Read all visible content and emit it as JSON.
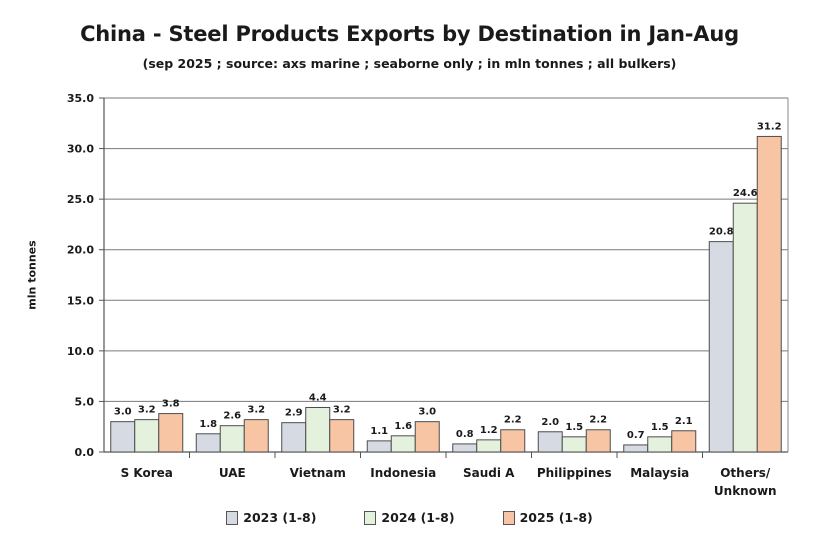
{
  "chart_data": {
    "type": "bar",
    "title": "China - Steel Products Exports by Destination in Jan-Aug",
    "subtitle": "(sep 2025 ; source: axs marine ; seaborne only ; in mln tonnes ; all bulkers)",
    "xlabel": "",
    "ylabel": "mln tonnes",
    "ylim": [
      0,
      35
    ],
    "yticks": [
      "0.0",
      "5.0",
      "10.0",
      "15.0",
      "20.0",
      "25.0",
      "30.0",
      "35.0"
    ],
    "grid": true,
    "legend_position": "bottom",
    "categories": [
      "S Korea",
      "UAE",
      "Vietnam",
      "Indonesia",
      "Saudi A",
      "Philippines",
      "Malaysia",
      "Others/ Unknown"
    ],
    "series": [
      {
        "name": "2023 (1-8)",
        "color": "#d5dae3",
        "values": [
          3.0,
          1.8,
          2.9,
          1.1,
          0.8,
          2.0,
          0.7,
          20.8
        ],
        "labels": [
          "3.0",
          "1.8",
          "2.9",
          "1.1",
          "0.8",
          "2.0",
          "0.7",
          "20.8"
        ]
      },
      {
        "name": "2024 (1-8)",
        "color": "#e3f1dd",
        "values": [
          3.2,
          2.6,
          4.4,
          1.6,
          1.2,
          1.5,
          1.5,
          24.6
        ],
        "labels": [
          "3.2",
          "2.6",
          "4.4",
          "1.6",
          "1.2",
          "1.5",
          "1.5",
          "24.6"
        ]
      },
      {
        "name": "2025 (1-8)",
        "color": "#f7c4a4",
        "values": [
          3.8,
          3.2,
          3.2,
          3.0,
          2.2,
          2.2,
          2.1,
          31.2
        ],
        "labels": [
          "3.8",
          "3.2",
          "3.2",
          "3.0",
          "2.2",
          "2.2",
          "2.1",
          "31.2"
        ]
      }
    ]
  }
}
